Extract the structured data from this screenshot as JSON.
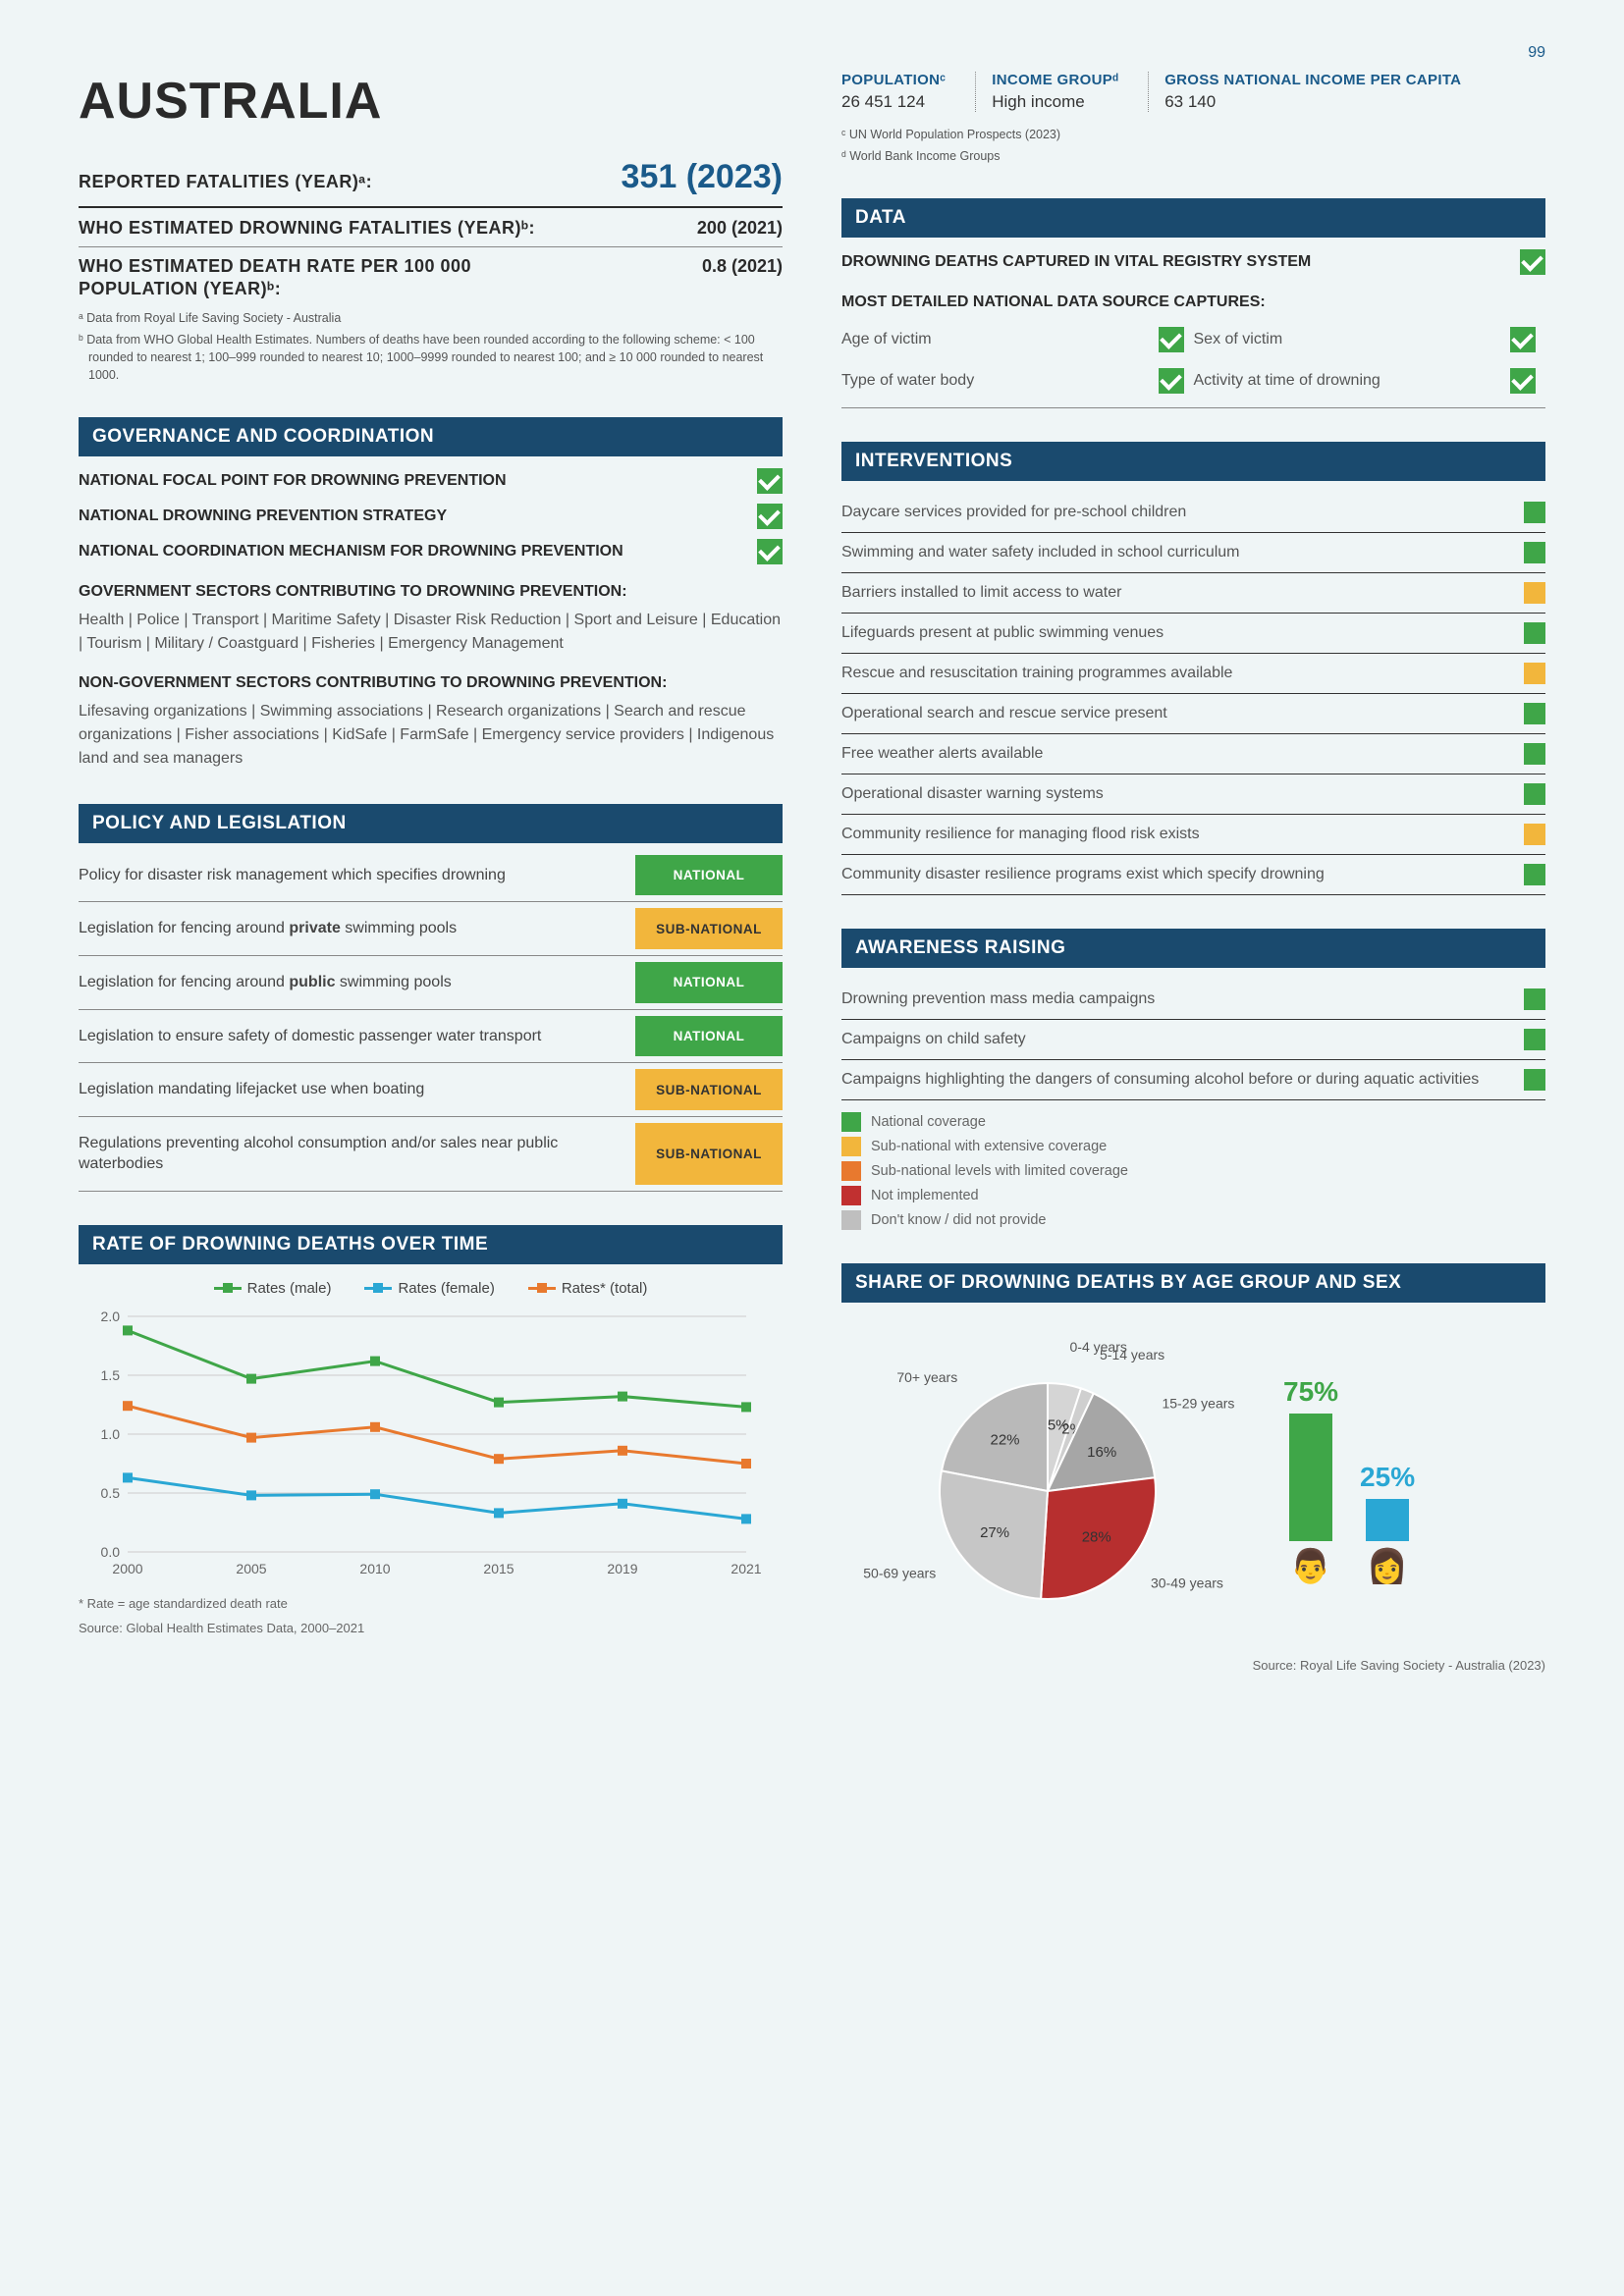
{
  "page_number": "99",
  "country": "AUSTRALIA",
  "reported": {
    "label": "REPORTED FATALITIES (YEAR)ᵃ:",
    "value": "351 (2023)"
  },
  "who_est": {
    "label": "WHO ESTIMATED DROWNING FATALITIES (YEAR)ᵇ:",
    "value": "200 (2021)"
  },
  "who_rate": {
    "label": "WHO ESTIMATED DEATH RATE PER 100 000 POPULATION (YEAR)ᵇ:",
    "value": "0.8 (2021)"
  },
  "footnotes_a": "ᵃ  Data from Royal Life Saving Society - Australia",
  "footnotes_b": "ᵇ  Data from WHO Global Health Estimates. Numbers of deaths have been rounded according to the following scheme: < 100 rounded to nearest 1; 100–999 rounded to nearest 10; 1000–9999 rounded to nearest 100; and ≥ 10 000 rounded to nearest 1000.",
  "top": {
    "pop_label": "POPULATIONᶜ",
    "pop_val": "26 451 124",
    "inc_label": "INCOME GROUPᵈ",
    "inc_val": "High income",
    "gni_label": "GROSS NATIONAL INCOME PER CAPITA",
    "gni_val": "63 140",
    "fn_c": "ᶜ  UN World Population Prospects (2023)",
    "fn_d": "ᵈ  World Bank Income Groups"
  },
  "sections": {
    "gov": "GOVERNANCE AND COORDINATION",
    "policy": "POLICY AND LEGISLATION",
    "data": "DATA",
    "interventions": "INTERVENTIONS",
    "awareness": "AWARENESS RAISING",
    "rate": "RATE OF DROWNING DEATHS OVER TIME",
    "share": "SHARE OF DROWNING DEATHS BY AGE GROUP AND SEX"
  },
  "gov_checks": [
    "NATIONAL FOCAL POINT FOR DROWNING PREVENTION",
    "NATIONAL DROWNING PREVENTION STRATEGY",
    "NATIONAL COORDINATION MECHANISM FOR DROWNING PREVENTION"
  ],
  "gov_sub1_label": "GOVERNMENT SECTORS CONTRIBUTING TO DROWNING PREVENTION:",
  "gov_sub1_text": "Health | Police | Transport | Maritime Safety | Disaster Risk Reduction | Sport and Leisure | Education | Tourism | Military / Coastguard | Fisheries | Emergency Management",
  "gov_sub2_label": "NON-GOVERNMENT SECTORS CONTRIBUTING TO DROWNING PREVENTION:",
  "gov_sub2_text": "Lifesaving organizations | Swimming associations | Research organizations | Search and rescue organizations | Fisher associations | KidSafe | FarmSafe | Emergency service providers | Indigenous land and sea managers",
  "policy_rows": [
    {
      "text": "Policy for disaster risk management which specifies drowning",
      "level": "NATIONAL",
      "cls": "national"
    },
    {
      "text": "Legislation for fencing around <b>private</b> swimming pools",
      "level": "SUB-NATIONAL",
      "cls": "subnational"
    },
    {
      "text": "Legislation for fencing around <b>public</b> swimming pools",
      "level": "NATIONAL",
      "cls": "national"
    },
    {
      "text": "Legislation to ensure safety of domestic passenger water transport",
      "level": "NATIONAL",
      "cls": "national"
    },
    {
      "text": "Legislation mandating lifejacket use when boating",
      "level": "SUB-NATIONAL",
      "cls": "subnational"
    },
    {
      "text": "Regulations preventing alcohol consumption and/or sales near public waterbodies",
      "level": "SUB-NATIONAL",
      "cls": "subnational"
    }
  ],
  "data_head": "DROWNING DEATHS CAPTURED IN VITAL REGISTRY SYSTEM",
  "data_sub": "MOST DETAILED NATIONAL DATA SOURCE CAPTURES:",
  "data_items": [
    "Age of victim",
    "Sex of victim",
    "Type of water body",
    "Activity at time of drowning"
  ],
  "interventions": [
    {
      "t": "Daycare services provided for pre-school children",
      "c": "green"
    },
    {
      "t": "Swimming and water safety included in school curriculum",
      "c": "green"
    },
    {
      "t": "Barriers installed to limit access to water",
      "c": "yellow"
    },
    {
      "t": "Lifeguards present at public swimming venues",
      "c": "green"
    },
    {
      "t": "Rescue and resuscitation training programmes available",
      "c": "yellow"
    },
    {
      "t": "Operational search and rescue service present",
      "c": "green"
    },
    {
      "t": "Free weather alerts available",
      "c": "green"
    },
    {
      "t": "Operational disaster warning systems",
      "c": "green"
    },
    {
      "t": "Community resilience for managing flood risk exists",
      "c": "yellow"
    },
    {
      "t": "Community disaster resilience programs exist which specify drowning",
      "c": "green"
    }
  ],
  "awareness": [
    {
      "t": "Drowning prevention mass media campaigns",
      "c": "green"
    },
    {
      "t": "Campaigns on child safety",
      "c": "green"
    },
    {
      "t": "Campaigns highlighting the dangers of consuming alcohol before or during aquatic activities",
      "c": "green"
    }
  ],
  "legend": [
    {
      "c": "green",
      "t": "National coverage"
    },
    {
      "c": "yellow",
      "t": "Sub-national with extensive coverage"
    },
    {
      "c": "orange",
      "t": "Sub-national levels with limited coverage"
    },
    {
      "c": "red",
      "t": "Not implemented"
    },
    {
      "c": "grey",
      "t": "Don't know / did not provide"
    }
  ],
  "line_chart": {
    "legend": {
      "male": "Rates (male)",
      "female": "Rates (female)",
      "total": "Rates* (total)"
    },
    "years": [
      "2000",
      "2005",
      "2010",
      "2015",
      "2019",
      "2021"
    ],
    "yticks": [
      "0.0",
      "0.5",
      "1.0",
      "1.5",
      "2.0"
    ],
    "ymax": 2.0,
    "male": [
      1.88,
      1.47,
      1.62,
      1.27,
      1.32,
      1.23
    ],
    "female": [
      0.63,
      0.48,
      0.49,
      0.33,
      0.41,
      0.28
    ],
    "total": [
      1.24,
      0.97,
      1.06,
      0.79,
      0.86,
      0.75
    ],
    "colors": {
      "male": "#3fa648",
      "female": "#2aa7d4",
      "total": "#e8792e"
    },
    "note": "* Rate = age standardized death rate",
    "source": "Source: Global Health Estimates Data, 2000–2021"
  },
  "pie": {
    "slices": [
      {
        "label": "70+ years",
        "pct": 22,
        "color": "#b9b9b9"
      },
      {
        "label": "0-4 years",
        "pct": 5,
        "color": "#d5d5d5"
      },
      {
        "label": "5-14 years",
        "pct": 2,
        "color": "#cfcfcf"
      },
      {
        "label": "15-29 years",
        "pct": 16,
        "color": "#a6a6a6"
      },
      {
        "label": "30-49 years",
        "pct": 28,
        "color": "#b72f2f"
      },
      {
        "label": "50-69 years",
        "pct": 27,
        "color": "#c6c6c6"
      }
    ],
    "sex": {
      "male_pct": "75%",
      "female_pct": "25%",
      "male_color": "#3fa648",
      "female_color": "#2aa7d4"
    },
    "source": "Source: Royal Life Saving Society - Australia (2023)"
  }
}
